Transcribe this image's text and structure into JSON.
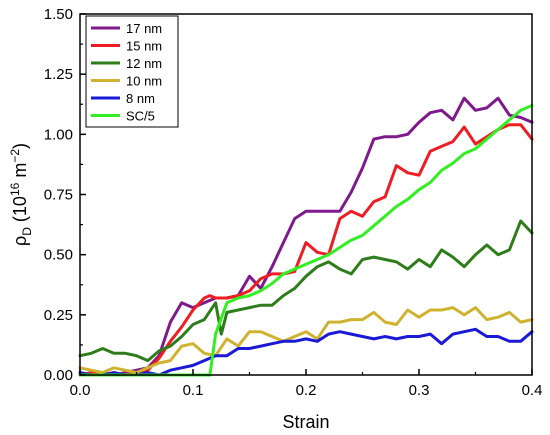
{
  "chart_data": {
    "type": "line",
    "xlabel": "Strain",
    "ylabel_main": "ρ",
    "ylabel_sub": "D",
    "ylabel_paren": " (10",
    "ylabel_exp": "16",
    "ylabel_unit": " m",
    "ylabel_unit_exp": "−2",
    "ylabel_close": ")",
    "xlim": [
      0.0,
      0.4
    ],
    "ylim": [
      0.0,
      1.5
    ],
    "xticks": [
      0.0,
      0.1,
      0.2,
      0.3,
      0.4
    ],
    "xtick_labels": [
      "0.0",
      "0.1",
      "0.2",
      "0.3",
      "0.4"
    ],
    "yticks": [
      0.0,
      0.25,
      0.5,
      0.75,
      1.0,
      1.25,
      1.5
    ],
    "ytick_labels": [
      "0.00",
      "0.25",
      "0.50",
      "0.75",
      "1.00",
      "1.25",
      "1.50"
    ],
    "grid": false,
    "legend_position": "top-left",
    "series": [
      {
        "name": "17 nm",
        "color": "#7f1a8c",
        "x": [
          0.0,
          0.01,
          0.02,
          0.03,
          0.04,
          0.05,
          0.06,
          0.07,
          0.08,
          0.09,
          0.095,
          0.1,
          0.11,
          0.12,
          0.13,
          0.14,
          0.15,
          0.16,
          0.17,
          0.18,
          0.19,
          0.2,
          0.21,
          0.22,
          0.23,
          0.24,
          0.25,
          0.26,
          0.27,
          0.28,
          0.29,
          0.3,
          0.31,
          0.32,
          0.33,
          0.34,
          0.35,
          0.36,
          0.37,
          0.38,
          0.39,
          0.4
        ],
        "y": [
          0.0,
          0.0,
          0.01,
          0.0,
          0.01,
          0.02,
          0.03,
          0.08,
          0.22,
          0.3,
          0.29,
          0.28,
          0.3,
          0.32,
          0.32,
          0.33,
          0.41,
          0.36,
          0.45,
          0.55,
          0.65,
          0.68,
          0.68,
          0.68,
          0.68,
          0.76,
          0.86,
          0.98,
          0.99,
          0.99,
          1.0,
          1.05,
          1.09,
          1.1,
          1.06,
          1.15,
          1.1,
          1.11,
          1.15,
          1.08,
          1.07,
          1.05
        ]
      },
      {
        "name": "15 nm",
        "color": "#ee1d24",
        "x": [
          0.0,
          0.01,
          0.02,
          0.03,
          0.04,
          0.05,
          0.06,
          0.07,
          0.08,
          0.09,
          0.1,
          0.11,
          0.115,
          0.12,
          0.13,
          0.14,
          0.15,
          0.16,
          0.17,
          0.18,
          0.19,
          0.2,
          0.21,
          0.22,
          0.23,
          0.24,
          0.25,
          0.26,
          0.27,
          0.28,
          0.29,
          0.3,
          0.31,
          0.32,
          0.33,
          0.34,
          0.35,
          0.36,
          0.37,
          0.38,
          0.39,
          0.4
        ],
        "y": [
          0.0,
          0.01,
          0.0,
          0.01,
          0.0,
          0.01,
          0.02,
          0.07,
          0.14,
          0.2,
          0.27,
          0.32,
          0.33,
          0.32,
          0.32,
          0.33,
          0.35,
          0.4,
          0.42,
          0.42,
          0.43,
          0.55,
          0.51,
          0.5,
          0.65,
          0.68,
          0.66,
          0.72,
          0.74,
          0.87,
          0.84,
          0.83,
          0.93,
          0.95,
          0.97,
          1.03,
          0.96,
          0.99,
          1.02,
          1.04,
          1.04,
          0.98
        ]
      },
      {
        "name": "12 nm",
        "color": "#2e7d1a",
        "x": [
          0.0,
          0.01,
          0.02,
          0.03,
          0.04,
          0.05,
          0.06,
          0.07,
          0.08,
          0.09,
          0.1,
          0.11,
          0.12,
          0.125,
          0.13,
          0.14,
          0.15,
          0.16,
          0.17,
          0.18,
          0.19,
          0.2,
          0.21,
          0.22,
          0.23,
          0.24,
          0.25,
          0.26,
          0.27,
          0.28,
          0.29,
          0.3,
          0.31,
          0.32,
          0.33,
          0.34,
          0.35,
          0.36,
          0.37,
          0.38,
          0.39,
          0.4
        ],
        "y": [
          0.08,
          0.09,
          0.11,
          0.09,
          0.09,
          0.08,
          0.06,
          0.1,
          0.12,
          0.16,
          0.21,
          0.23,
          0.3,
          0.17,
          0.26,
          0.27,
          0.28,
          0.29,
          0.29,
          0.33,
          0.36,
          0.41,
          0.45,
          0.47,
          0.44,
          0.42,
          0.48,
          0.49,
          0.48,
          0.47,
          0.44,
          0.48,
          0.45,
          0.52,
          0.49,
          0.45,
          0.5,
          0.54,
          0.5,
          0.52,
          0.64,
          0.59
        ]
      },
      {
        "name": "10 nm",
        "color": "#cfb330",
        "x": [
          0.0,
          0.01,
          0.02,
          0.03,
          0.04,
          0.05,
          0.06,
          0.07,
          0.08,
          0.09,
          0.1,
          0.11,
          0.12,
          0.13,
          0.14,
          0.15,
          0.16,
          0.17,
          0.18,
          0.19,
          0.2,
          0.21,
          0.22,
          0.23,
          0.24,
          0.25,
          0.26,
          0.27,
          0.28,
          0.29,
          0.3,
          0.31,
          0.32,
          0.33,
          0.34,
          0.35,
          0.36,
          0.37,
          0.38,
          0.39,
          0.4
        ],
        "y": [
          0.03,
          0.02,
          0.01,
          0.03,
          0.02,
          0.01,
          0.03,
          0.05,
          0.06,
          0.12,
          0.13,
          0.09,
          0.08,
          0.15,
          0.12,
          0.18,
          0.18,
          0.16,
          0.14,
          0.16,
          0.18,
          0.15,
          0.22,
          0.22,
          0.23,
          0.23,
          0.26,
          0.22,
          0.21,
          0.27,
          0.24,
          0.27,
          0.27,
          0.28,
          0.25,
          0.28,
          0.23,
          0.24,
          0.26,
          0.22,
          0.23
        ]
      },
      {
        "name": "8 nm",
        "color": "#1a1ad6",
        "x": [
          0.0,
          0.01,
          0.02,
          0.03,
          0.04,
          0.05,
          0.06,
          0.07,
          0.08,
          0.09,
          0.1,
          0.11,
          0.12,
          0.13,
          0.14,
          0.15,
          0.16,
          0.17,
          0.18,
          0.19,
          0.2,
          0.21,
          0.22,
          0.23,
          0.24,
          0.25,
          0.26,
          0.27,
          0.28,
          0.29,
          0.3,
          0.31,
          0.32,
          0.33,
          0.34,
          0.35,
          0.36,
          0.37,
          0.38,
          0.39,
          0.4
        ],
        "y": [
          0.01,
          0.0,
          0.0,
          0.01,
          0.0,
          0.0,
          0.01,
          0.0,
          0.02,
          0.03,
          0.04,
          0.06,
          0.08,
          0.08,
          0.11,
          0.11,
          0.12,
          0.13,
          0.14,
          0.14,
          0.15,
          0.14,
          0.17,
          0.18,
          0.17,
          0.16,
          0.15,
          0.16,
          0.15,
          0.16,
          0.16,
          0.17,
          0.13,
          0.17,
          0.18,
          0.19,
          0.16,
          0.16,
          0.14,
          0.14,
          0.18
        ]
      },
      {
        "name": "SC/5",
        "color": "#33ee22",
        "x": [
          0.0,
          0.01,
          0.02,
          0.03,
          0.04,
          0.05,
          0.06,
          0.07,
          0.08,
          0.09,
          0.1,
          0.11,
          0.115,
          0.12,
          0.13,
          0.14,
          0.15,
          0.16,
          0.17,
          0.18,
          0.19,
          0.2,
          0.21,
          0.22,
          0.23,
          0.24,
          0.25,
          0.26,
          0.27,
          0.28,
          0.29,
          0.3,
          0.31,
          0.32,
          0.33,
          0.34,
          0.35,
          0.36,
          0.37,
          0.38,
          0.39,
          0.4
        ],
        "y": [
          0.0,
          0.0,
          0.0,
          0.0,
          0.0,
          0.0,
          0.0,
          0.0,
          0.0,
          0.0,
          0.0,
          0.0,
          0.0,
          0.17,
          0.3,
          0.32,
          0.33,
          0.35,
          0.38,
          0.42,
          0.44,
          0.46,
          0.48,
          0.5,
          0.53,
          0.56,
          0.58,
          0.62,
          0.66,
          0.7,
          0.73,
          0.77,
          0.8,
          0.85,
          0.88,
          0.92,
          0.94,
          0.98,
          1.02,
          1.06,
          1.1,
          1.12
        ]
      }
    ]
  }
}
